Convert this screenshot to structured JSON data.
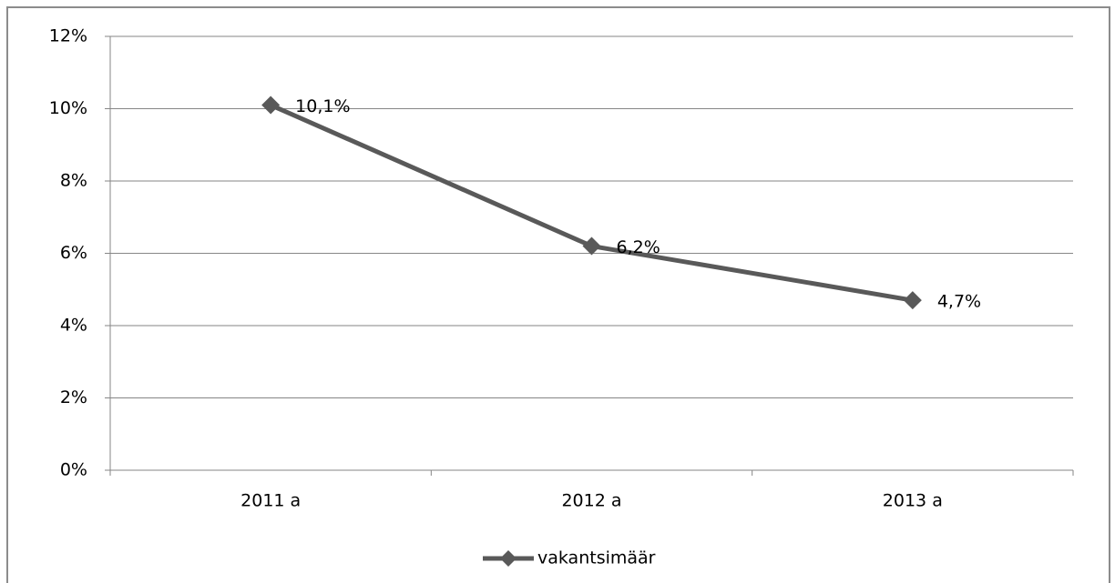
{
  "chart_data": {
    "type": "line",
    "categories": [
      "2011 a",
      "2012 a",
      "2013 a"
    ],
    "series": [
      {
        "name": "vakantsimäär",
        "color": "#595959",
        "values": [
          10.1,
          6.2,
          4.7
        ],
        "value_labels": [
          "10,1%",
          "6,2%",
          "4,7%"
        ]
      }
    ],
    "ylim": [
      0,
      12
    ],
    "yticks": [
      {
        "value": 0,
        "label": "0%"
      },
      {
        "value": 2,
        "label": "2%"
      },
      {
        "value": 4,
        "label": "4%"
      },
      {
        "value": 6,
        "label": "6%"
      },
      {
        "value": 8,
        "label": "8%"
      },
      {
        "value": 10,
        "label": "10%"
      },
      {
        "value": 12,
        "label": "12%"
      }
    ],
    "grid": true,
    "legend": "bottom"
  }
}
